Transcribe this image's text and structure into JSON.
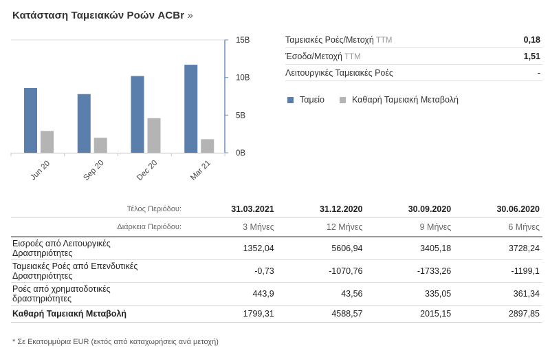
{
  "header": {
    "title": "Κατάσταση Ταμειακών Ροών ACBr",
    "more_glyph": "»"
  },
  "stats": [
    {
      "label": "Ταμειακές Ροές/Μετοχή",
      "suffix": "TTM",
      "value": "0,18",
      "bold": true
    },
    {
      "label": "Έσοδα/Μετοχή",
      "suffix": "TTM",
      "value": "1,51",
      "bold": true
    },
    {
      "label": "Λειτουργικές Ταμειακές Ροές",
      "suffix": "",
      "value": "-",
      "bold": false
    }
  ],
  "legend": [
    {
      "label": "Ταμείο",
      "color": "#5b7fad"
    },
    {
      "label": "Καθαρή Ταμειακή Μεταβολή",
      "color": "#b4b4b4"
    }
  ],
  "chart_data": {
    "type": "bar",
    "categories": [
      "Jun 20",
      "Sep 20",
      "Dec 20",
      "Mar 21"
    ],
    "series": [
      {
        "name": "Ταμείο",
        "color": "#5b7fad",
        "values": [
          8.6,
          7.8,
          10.2,
          11.7
        ]
      },
      {
        "name": "Καθαρή Ταμειακή Μεταβολή",
        "color": "#b4b4b4",
        "values": [
          2.9,
          2.0,
          4.6,
          1.8
        ]
      }
    ],
    "yticks": [
      "0B",
      "5B",
      "10B",
      "15B"
    ],
    "ytick_values": [
      0,
      5,
      10,
      15
    ],
    "ylim": [
      0,
      15
    ],
    "y_axis_side": "right",
    "grid": false
  },
  "table": {
    "header_rows": [
      {
        "label": "Τέλος Περιόδου:",
        "cells": [
          "31.03.2021",
          "31.12.2020",
          "30.09.2020",
          "30.06.2020"
        ]
      },
      {
        "label": "Διάρκεια Περιόδου:",
        "cells": [
          "3 Μήνες",
          "12 Μήνες",
          "9 Μήνες",
          "6 Μήνες"
        ]
      }
    ],
    "rows": [
      {
        "name_lines": [
          "Εισροές από Λειτουργικές",
          "Δραστηριότητες"
        ],
        "values": [
          "1352,04",
          "5606,94",
          "3405,18",
          "3728,24"
        ],
        "total": false
      },
      {
        "name_lines": [
          "Ταμειακές Ροές από Επενδυτικές",
          "Δραστηριότητες"
        ],
        "values": [
          "-0,73",
          "-1070,76",
          "-1733,26",
          "-1199,1"
        ],
        "total": false
      },
      {
        "name_lines": [
          "Ροές από χρηματοδοτικές",
          "δραστηριότητες"
        ],
        "values": [
          "443,9",
          "43,56",
          "335,05",
          "361,34"
        ],
        "total": false
      },
      {
        "name_lines": [
          "Καθαρή Ταμειακή Μεταβολή"
        ],
        "values": [
          "1799,31",
          "4588,57",
          "2015,15",
          "2897,85"
        ],
        "total": true
      }
    ]
  },
  "footnote": "* Σε Εκατομμύρια EUR (εκτός από καταχωρήσεις ανά μετοχή)"
}
